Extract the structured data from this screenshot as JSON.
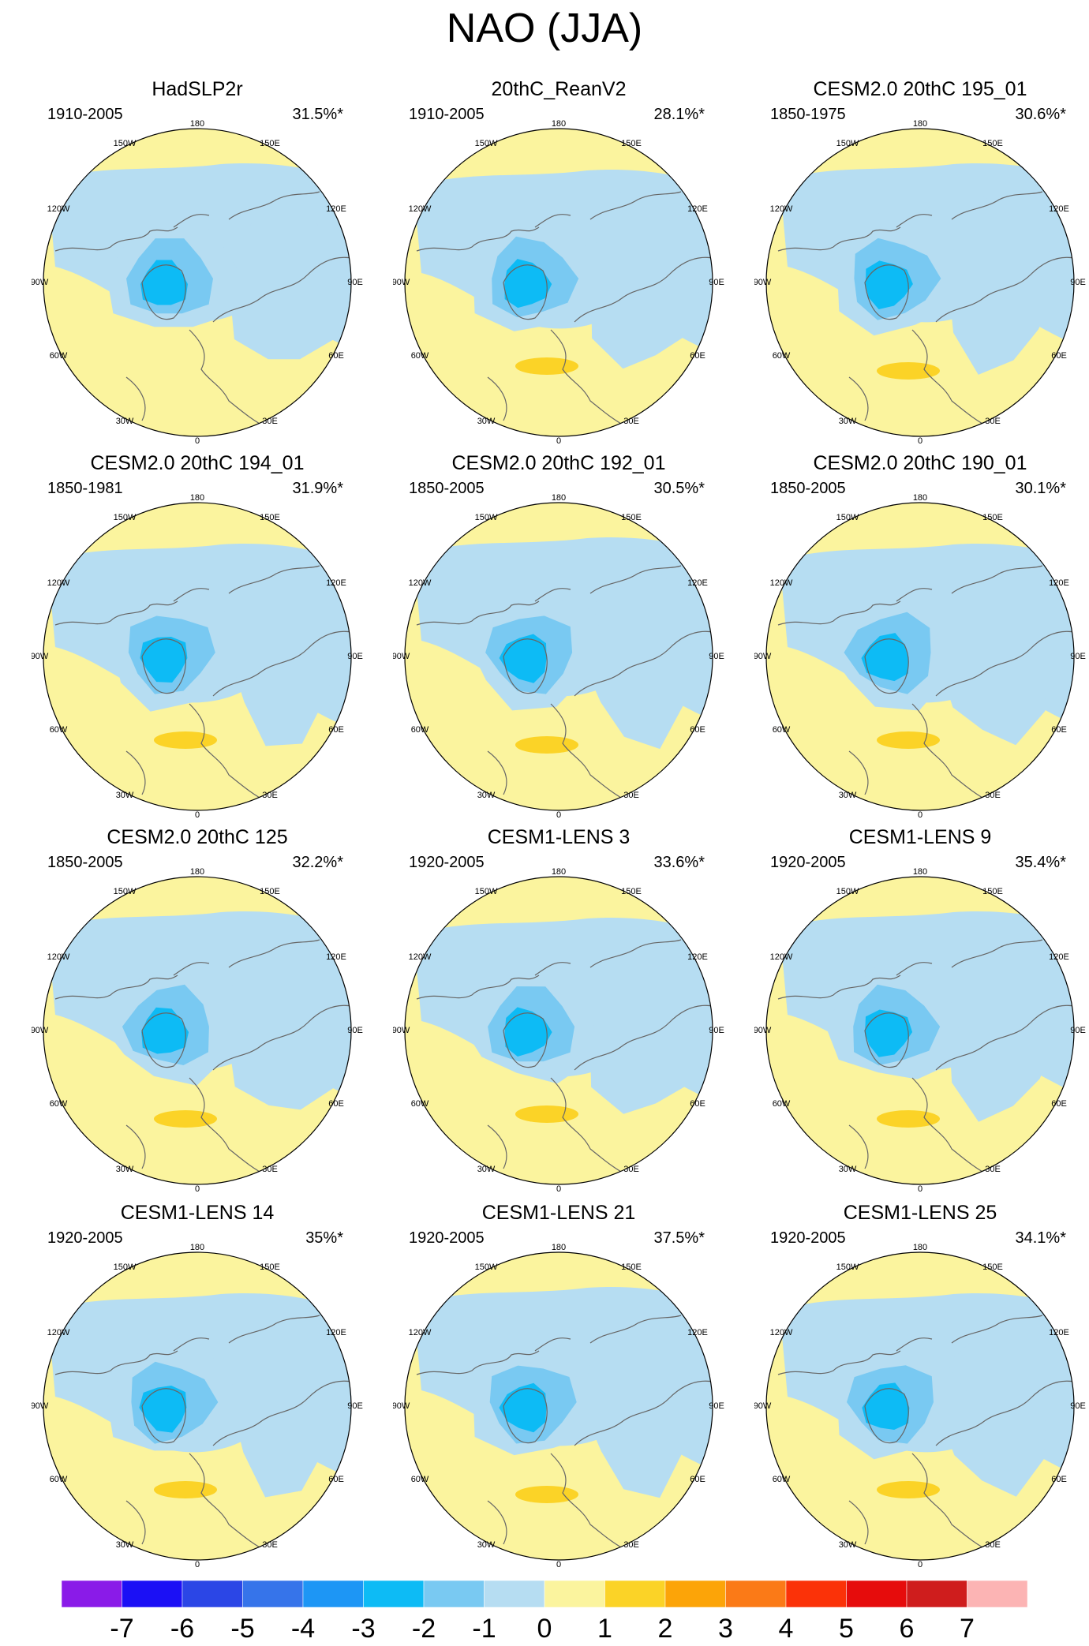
{
  "title": "NAO (JJA)",
  "colors": {
    "neg7": "#8a1be8",
    "neg6": "#1b10f5",
    "neg5": "#2b46e6",
    "neg4": "#3674ea",
    "neg3": "#1d96f5",
    "neg2": "#0dbbf5",
    "neg1": "#79c9f2",
    "zero_neg": "#b6ddf2",
    "zero_pos": "#fbf49e",
    "pos1": "#fbd327",
    "pos2": "#fca408",
    "pos3": "#fb7a17",
    "pos4": "#fb3208",
    "pos5": "#e60c0c",
    "pos6": "#cf1d1d",
    "pos7": "#fcb4b4",
    "coast": "#666666"
  },
  "chart_data": {
    "type": "heatmap",
    "projection": "north-polar-stereographic",
    "variable": "NAO sea-level pressure pattern",
    "season": "JJA",
    "lon_labels": [
      "180",
      "150W",
      "150E",
      "120W",
      "120E",
      "90W",
      "90E",
      "60W",
      "60E",
      "30W",
      "30E",
      "0"
    ],
    "panels": [
      {
        "name": "HadSLP2r",
        "period": "1910-2005",
        "variance": "31.5%*"
      },
      {
        "name": "20thC_ReanV2",
        "period": "1910-2005",
        "variance": "28.1%*"
      },
      {
        "name": "CESM2.0 20thC 195_01",
        "period": "1850-1975",
        "variance": "30.6%*"
      },
      {
        "name": "CESM2.0 20thC 194_01",
        "period": "1850-1981",
        "variance": "31.9%*"
      },
      {
        "name": "CESM2.0 20thC 192_01",
        "period": "1850-2005",
        "variance": "30.5%*"
      },
      {
        "name": "CESM2.0 20thC 190_01",
        "period": "1850-2005",
        "variance": "30.1%*"
      },
      {
        "name": "CESM2.0 20thC 125",
        "period": "1850-2005",
        "variance": "32.2%*"
      },
      {
        "name": "CESM1-LENS 3",
        "period": "1920-2005",
        "variance": "33.6%*"
      },
      {
        "name": "CESM1-LENS 9",
        "period": "1920-2005",
        "variance": "35.4%*"
      },
      {
        "name": "CESM1-LENS 14",
        "period": "1920-2005",
        "variance": "35%*"
      },
      {
        "name": "CESM1-LENS 21",
        "period": "1920-2005",
        "variance": "37.5%*"
      },
      {
        "name": "CESM1-LENS 25",
        "period": "1920-2005",
        "variance": "34.1%*"
      }
    ],
    "colorbar": {
      "ticks": [
        "-7",
        "-6",
        "-5",
        "-4",
        "-3",
        "-2",
        "-1",
        "0",
        "1",
        "2",
        "3",
        "4",
        "5",
        "6",
        "7"
      ],
      "n_boxes": 16,
      "min": -7,
      "max": 7,
      "step": 1
    }
  }
}
